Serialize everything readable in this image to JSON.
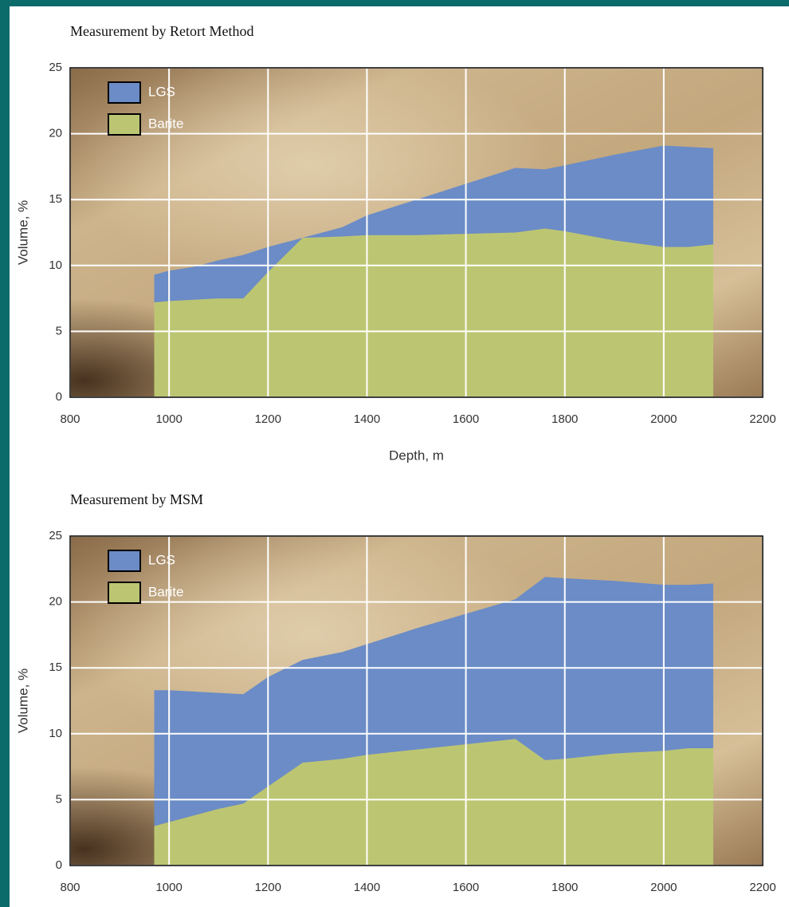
{
  "chart_data": [
    {
      "type": "area",
      "stacked": true,
      "title": "Measurement by Retort Method",
      "xlabel": "Depth, m",
      "ylabel": "Volume, %",
      "x": [
        970,
        1000,
        1050,
        1100,
        1150,
        1200,
        1270,
        1350,
        1400,
        1500,
        1600,
        1700,
        1760,
        1800,
        1900,
        2000,
        2050,
        2100
      ],
      "series": [
        {
          "name": "Barite",
          "color": "#bcc672",
          "values": [
            7.2,
            7.3,
            7.4,
            7.5,
            7.5,
            9.5,
            12.1,
            12.2,
            12.3,
            12.3,
            12.4,
            12.5,
            12.8,
            12.6,
            11.9,
            11.4,
            11.4,
            11.6
          ]
        },
        {
          "name": "LGS",
          "color": "#6b8cc6",
          "values": [
            2.1,
            2.3,
            2.5,
            2.9,
            3.3,
            1.9,
            0,
            0.7,
            1.5,
            2.7,
            3.8,
            4.9,
            4.5,
            5.0,
            6.5,
            7.7,
            7.6,
            7.3
          ]
        }
      ],
      "xlim": [
        800,
        2200
      ],
      "xticks": [
        800,
        1000,
        1200,
        1400,
        1600,
        1800,
        2000,
        2200
      ],
      "ylim": [
        0,
        25
      ],
      "yticks": [
        0,
        5,
        10,
        15,
        20,
        25
      ],
      "grid": true,
      "legend": "upper left"
    },
    {
      "type": "area",
      "stacked": true,
      "title": "Measurement by MSM",
      "ylabel": "Volume, %",
      "x": [
        970,
        1000,
        1050,
        1100,
        1150,
        1200,
        1270,
        1350,
        1400,
        1500,
        1600,
        1700,
        1760,
        1800,
        1900,
        2000,
        2050,
        2100
      ],
      "series": [
        {
          "name": "Barite",
          "color": "#bcc672",
          "values": [
            3.0,
            3.3,
            3.8,
            4.3,
            4.7,
            6.0,
            7.8,
            8.1,
            8.4,
            8.8,
            9.2,
            9.6,
            8.0,
            8.1,
            8.5,
            8.7,
            8.9,
            8.9
          ]
        },
        {
          "name": "LGS",
          "color": "#6b8cc6",
          "values": [
            10.3,
            10.0,
            9.4,
            8.8,
            8.3,
            8.3,
            7.8,
            8.1,
            8.4,
            9.2,
            9.9,
            10.6,
            13.9,
            13.7,
            13.1,
            12.6,
            12.4,
            12.5
          ]
        }
      ],
      "xlim": [
        800,
        2200
      ],
      "xticks": [
        800,
        1000,
        1200,
        1400,
        1600,
        1800,
        2000,
        2200
      ],
      "ylim": [
        0,
        25
      ],
      "yticks": [
        0,
        5,
        10,
        15,
        20,
        25
      ],
      "grid": true,
      "legend": "upper left"
    }
  ]
}
